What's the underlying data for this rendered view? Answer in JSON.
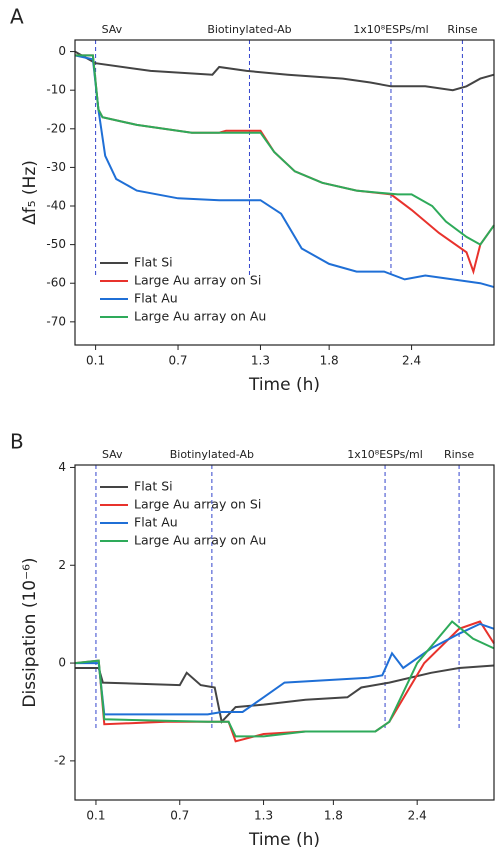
{
  "chart_data": [
    {
      "type": "line",
      "panel_label": "A",
      "xlabel": "Time (h)",
      "ylabel": "Δf₅ (Hz)",
      "xlim": [
        -0.05,
        3.0
      ],
      "ylim": [
        -76,
        3
      ],
      "xticks": [
        0.1,
        0.7,
        1.3,
        1.8,
        2.4
      ],
      "yticks": [
        0,
        -10,
        -20,
        -30,
        -40,
        -50,
        -60,
        -70
      ],
      "legend": "lower left",
      "events": [
        {
          "label": "SAv",
          "x": 0.1
        },
        {
          "label": "Biotinylated-Ab",
          "x": 1.22
        },
        {
          "label": "1x10⁸ESPs/ml",
          "x": 2.25
        },
        {
          "label": "Rinse",
          "x": 2.77
        }
      ],
      "series": [
        {
          "name": "Flat Si",
          "color": "#444444",
          "x": [
            -0.05,
            0.1,
            0.5,
            0.95,
            1.0,
            1.2,
            1.5,
            1.9,
            2.1,
            2.25,
            2.5,
            2.7,
            2.8,
            2.9,
            3.0
          ],
          "values": [
            0,
            -3,
            -5,
            -6,
            -4,
            -5,
            -6,
            -7,
            -8,
            -9,
            -9,
            -10,
            -9,
            -7,
            -6
          ]
        },
        {
          "name": "Large Au array on Si",
          "color": "#e8322c",
          "x": [
            -0.05,
            0.08,
            0.12,
            0.15,
            0.4,
            0.8,
            1.0,
            1.05,
            1.3,
            1.4,
            1.55,
            1.75,
            2.0,
            2.25,
            2.4,
            2.6,
            2.8,
            2.85,
            2.9,
            3.0
          ],
          "values": [
            -1,
            -1,
            -15,
            -17,
            -19,
            -21,
            -21,
            -20.5,
            -20.5,
            -26,
            -31,
            -34,
            -36,
            -37,
            -41,
            -47,
            -52,
            -57,
            -50,
            -45
          ]
        },
        {
          "name": "Flat Au",
          "color": "#1f6fd6",
          "x": [
            -0.05,
            0.08,
            0.12,
            0.17,
            0.25,
            0.4,
            0.7,
            1.0,
            1.3,
            1.45,
            1.6,
            1.8,
            2.0,
            2.2,
            2.35,
            2.5,
            2.7,
            2.9,
            3.0
          ],
          "values": [
            -1,
            -2,
            -15,
            -27,
            -33,
            -36,
            -38,
            -38.5,
            -38.5,
            -42,
            -51,
            -55,
            -57,
            -57,
            -59,
            -58,
            -59,
            -60,
            -61
          ]
        },
        {
          "name": "Large Au array on Au",
          "color": "#2eaa5a",
          "x": [
            -0.05,
            0.08,
            0.12,
            0.15,
            0.4,
            0.8,
            1.3,
            1.4,
            1.55,
            1.75,
            2.0,
            2.3,
            2.4,
            2.55,
            2.65,
            2.8,
            2.9,
            3.0
          ],
          "values": [
            -1,
            -1,
            -15,
            -17,
            -19,
            -21,
            -21,
            -26,
            -31,
            -34,
            -36,
            -37,
            -37,
            -40,
            -44,
            -48,
            -50,
            -45
          ]
        }
      ]
    },
    {
      "type": "line",
      "panel_label": "B",
      "xlabel": "Time (h)",
      "ylabel": "Dissipation (10⁻⁶)",
      "xlim": [
        -0.05,
        2.95
      ],
      "ylim": [
        -2.8,
        4.05
      ],
      "xticks": [
        0.1,
        0.7,
        1.3,
        1.8,
        2.4
      ],
      "yticks": [
        -2,
        0,
        2,
        4
      ],
      "legend": "upper left",
      "events": [
        {
          "label": "SAv",
          "x": 0.1
        },
        {
          "label": "Biotinylated-Ab",
          "x": 0.93
        },
        {
          "label": "1x10⁸ESPs/ml",
          "x": 2.17
        },
        {
          "label": "Rinse",
          "x": 2.7
        }
      ],
      "series": [
        {
          "name": "Flat Si",
          "color": "#444444",
          "x": [
            -0.05,
            0.12,
            0.15,
            0.7,
            0.75,
            0.85,
            0.95,
            1.0,
            1.1,
            1.3,
            1.6,
            1.9,
            2.0,
            2.2,
            2.5,
            2.7,
            2.95
          ],
          "values": [
            -0.1,
            -0.1,
            -0.4,
            -0.45,
            -0.2,
            -0.45,
            -0.5,
            -1.2,
            -0.9,
            -0.85,
            -0.75,
            -0.7,
            -0.5,
            -0.4,
            -0.2,
            -0.1,
            -0.05
          ]
        },
        {
          "name": "Large Au array on Si",
          "color": "#e8322c",
          "x": [
            -0.05,
            0.12,
            0.16,
            0.6,
            1.05,
            1.1,
            1.3,
            1.6,
            2.1,
            2.2,
            2.45,
            2.7,
            2.85,
            2.95
          ],
          "values": [
            0,
            0.05,
            -1.25,
            -1.2,
            -1.2,
            -1.6,
            -1.45,
            -1.4,
            -1.4,
            -1.2,
            0,
            0.7,
            0.85,
            0.4
          ]
        },
        {
          "name": "Flat Au",
          "color": "#1f6fd6",
          "x": [
            -0.05,
            0.12,
            0.16,
            0.9,
            1.0,
            1.15,
            1.3,
            1.45,
            2.05,
            2.15,
            2.22,
            2.3,
            2.5,
            2.7,
            2.85,
            2.95
          ],
          "values": [
            0,
            0,
            -1.05,
            -1.05,
            -1.0,
            -1.0,
            -0.7,
            -0.4,
            -0.3,
            -0.25,
            0.2,
            -0.1,
            0.3,
            0.6,
            0.8,
            0.7
          ]
        },
        {
          "name": "Large Au array on Au",
          "color": "#2eaa5a",
          "x": [
            -0.05,
            0.12,
            0.16,
            0.9,
            1.05,
            1.1,
            1.3,
            1.6,
            2.1,
            2.2,
            2.4,
            2.65,
            2.8,
            2.95
          ],
          "values": [
            0,
            0.05,
            -1.15,
            -1.2,
            -1.2,
            -1.5,
            -1.5,
            -1.4,
            -1.4,
            -1.2,
            0,
            0.85,
            0.5,
            0.3
          ]
        }
      ]
    }
  ]
}
